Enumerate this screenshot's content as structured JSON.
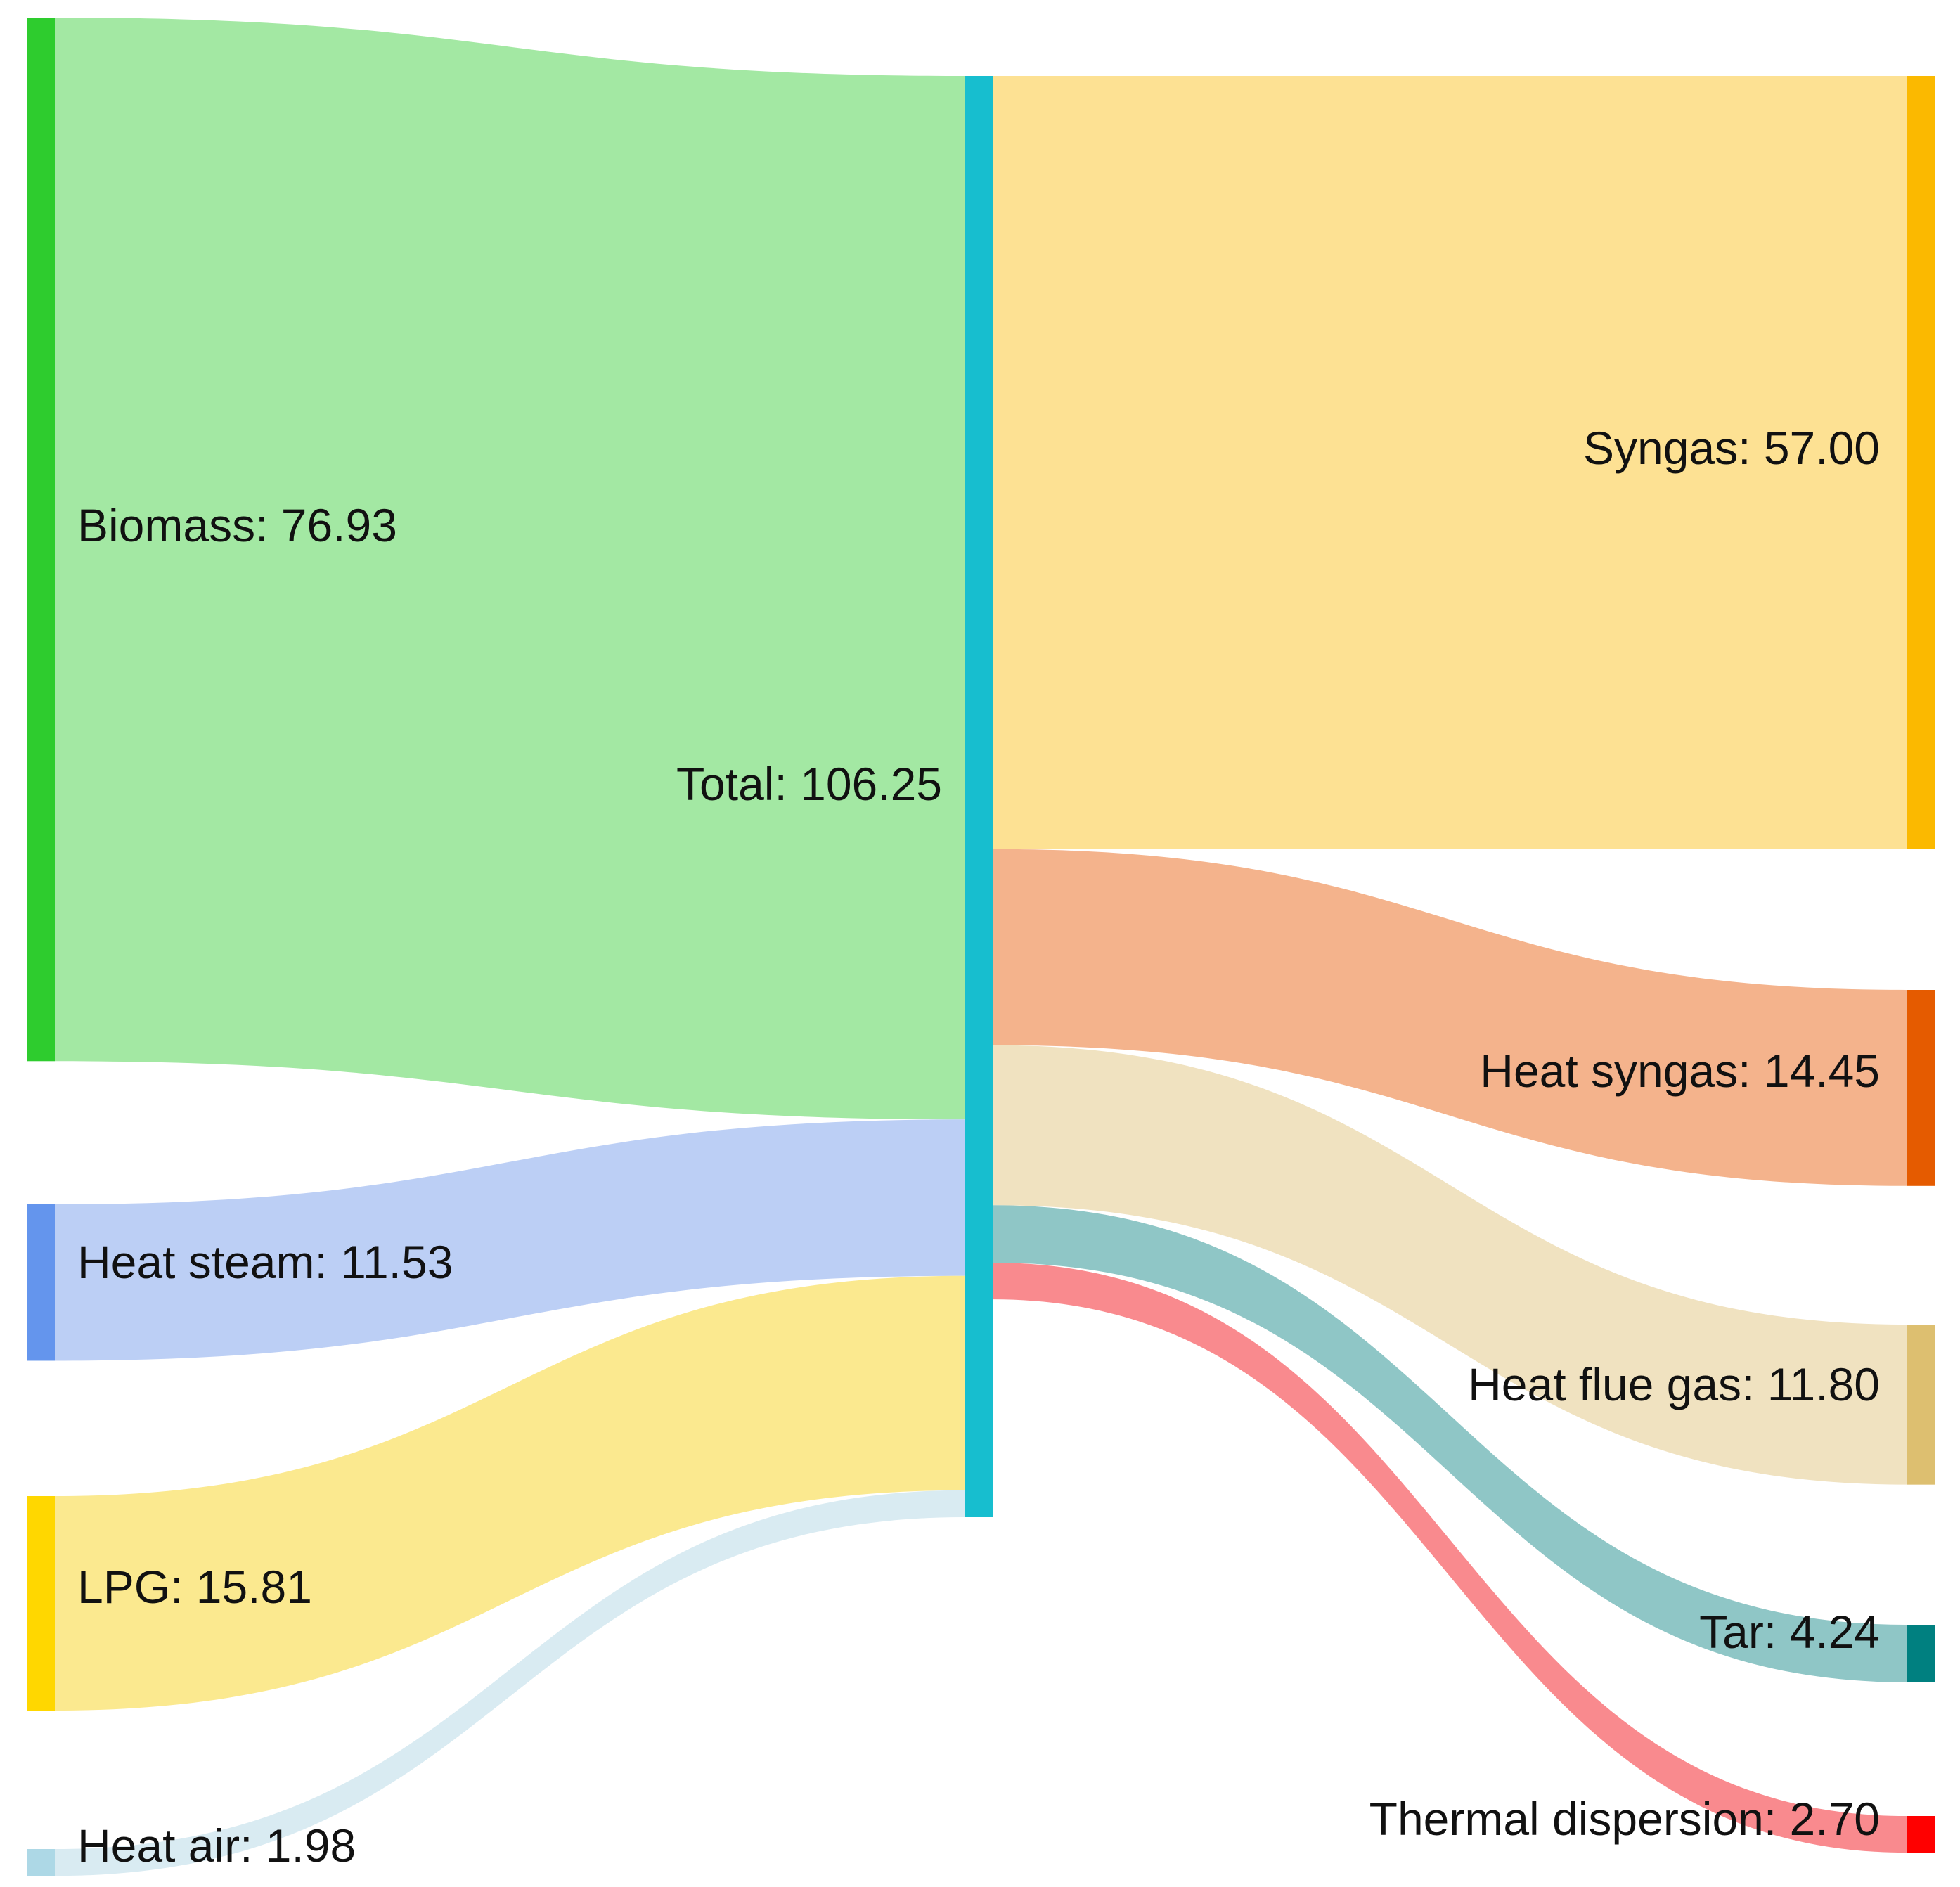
{
  "diagram": {
    "type": "sankey",
    "center_node": {
      "id": "total",
      "label": "Total: 106.25",
      "value": 106.25,
      "color": "#17becf"
    },
    "inputs": [
      {
        "id": "biomass",
        "label": "Biomass: 76.93",
        "value": 76.93,
        "node_color": "#2ecc2e",
        "link_color": "#a3e8a3"
      },
      {
        "id": "heat_steam",
        "label": "Heat steam: 11.53",
        "value": 11.53,
        "node_color": "#6495ed",
        "link_color": "#bccff5"
      },
      {
        "id": "lpg",
        "label": "LPG: 15.81",
        "value": 15.81,
        "node_color": "#ffd700",
        "link_color": "#fbe98f"
      },
      {
        "id": "heat_air",
        "label": "Heat air: 1.98",
        "value": 1.98,
        "node_color": "#add8e6",
        "link_color": "#d9ebf2"
      }
    ],
    "outputs": [
      {
        "id": "syngas",
        "label": "Syngas: 57.00",
        "value": 57.0,
        "node_color": "#fbb900",
        "link_color": "#fde193"
      },
      {
        "id": "heat_syngas",
        "label": "Heat syngas: 14.45",
        "value": 14.45,
        "node_color": "#e55b00",
        "link_color": "#f4b38c"
      },
      {
        "id": "heat_flue_gas",
        "label": "Heat flue gas: 11.80",
        "value": 11.8,
        "node_color": "#ddbf70",
        "link_color": "#f0e2c0"
      },
      {
        "id": "tar",
        "label": "Tar: 4.24",
        "value": 4.24,
        "node_color": "#008080",
        "link_color": "#8fc6c6"
      },
      {
        "id": "thermal_dispersion",
        "label": "Thermal dispersion: 2.70",
        "value": 2.7,
        "node_color": "#ff0000",
        "link_color": "#f98a8e"
      }
    ]
  }
}
